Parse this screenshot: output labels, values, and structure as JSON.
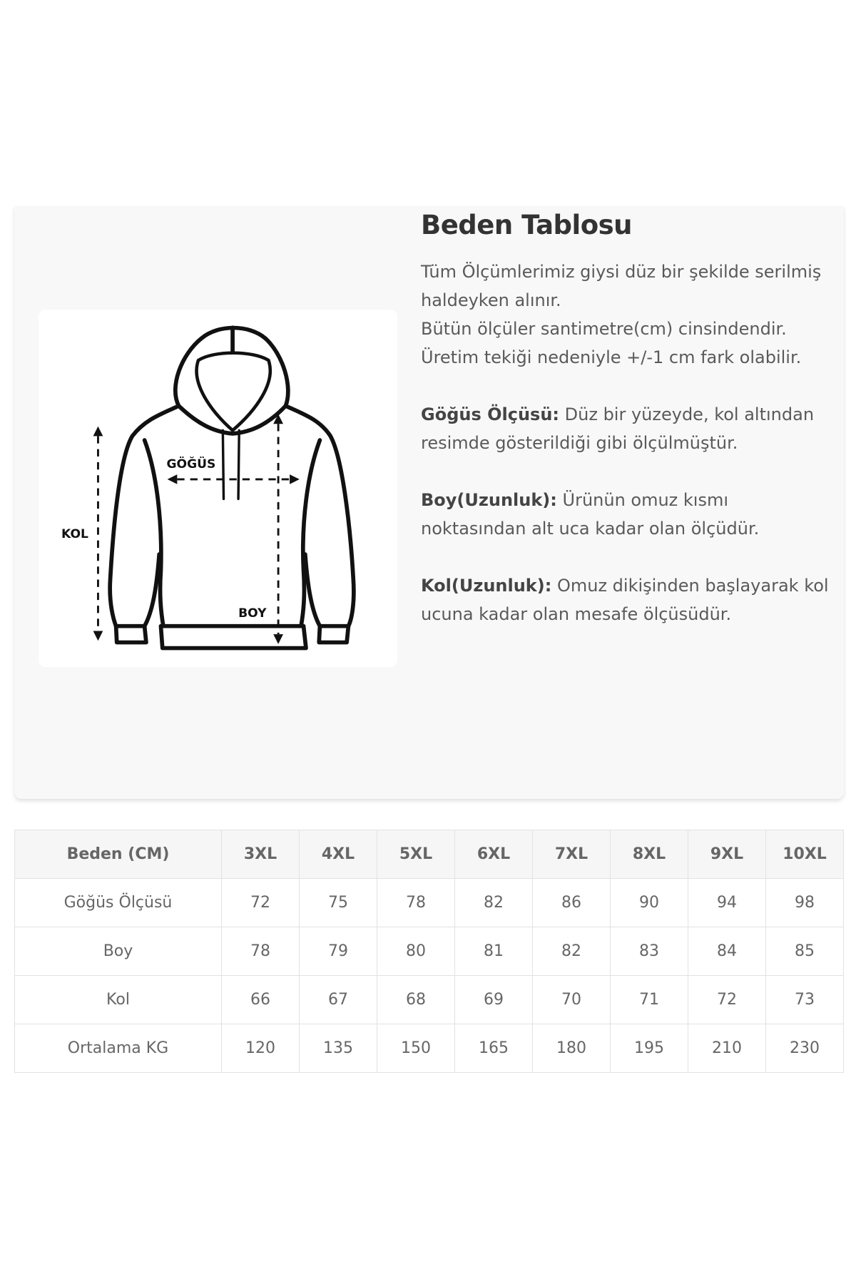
{
  "info": {
    "title": "Beden Tablosu",
    "intro_1": "Tüm Ölçümlerimiz giysi düz bir şekilde serilmiş haldeyken alınır.",
    "intro_2": "Bütün ölçüler santimetre(cm) cinsindendir. Üretim tekiği nedeniyle +/-1 cm fark olabilir.",
    "chest_label": "Göğüs Ölçüsü:",
    "chest_text": " Düz bir yüzeyde, kol altından resimde gösterildiği gibi ölçülmüştür.",
    "length_label": "Boy(Uzunluk):",
    "length_text": " Ürünün omuz kısmı noktasından alt uca kadar olan ölçüdür.",
    "sleeve_label": "Kol(Uzunluk):",
    "sleeve_text": " Omuz dikişinden başlayarak kol ucuna kadar olan mesafe ölçüsüdür."
  },
  "diagram": {
    "kol": "KOL",
    "gogus": "GÖĞÜS",
    "boy": "BOY"
  },
  "table": {
    "headers": [
      "Beden (CM)",
      "3XL",
      "4XL",
      "5XL",
      "6XL",
      "7XL",
      "8XL",
      "9XL",
      "10XL"
    ],
    "rows": [
      [
        "Göğüs Ölçüsü",
        "72",
        "75",
        "78",
        "82",
        "86",
        "90",
        "94",
        "98"
      ],
      [
        "Boy",
        "78",
        "79",
        "80",
        "81",
        "82",
        "83",
        "84",
        "85"
      ],
      [
        "Kol",
        "66",
        "67",
        "68",
        "69",
        "70",
        "71",
        "72",
        "73"
      ],
      [
        "Ortalama KG",
        "120",
        "135",
        "150",
        "165",
        "180",
        "195",
        "210",
        "230"
      ]
    ]
  }
}
